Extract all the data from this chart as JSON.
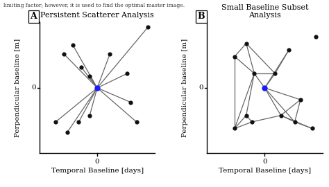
{
  "panel_A": {
    "title": "Persistent Scatterer Analysis",
    "label": "A",
    "master": [
      0,
      0
    ],
    "master_color": "#1a1aff",
    "points": [
      [
        -0.58,
        0.52
      ],
      [
        -0.42,
        0.65
      ],
      [
        -0.28,
        0.32
      ],
      [
        -0.13,
        0.18
      ],
      [
        0.22,
        0.52
      ],
      [
        0.52,
        0.22
      ],
      [
        0.88,
        0.93
      ],
      [
        0.58,
        -0.22
      ],
      [
        0.68,
        -0.52
      ],
      [
        -0.13,
        -0.42
      ],
      [
        -0.32,
        -0.52
      ],
      [
        -0.72,
        -0.52
      ],
      [
        -0.52,
        -0.68
      ]
    ],
    "xlabel": "Temporal Baseline [days]",
    "ylabel": "Perpendicular baseline [m]",
    "xlim": [
      -1.0,
      1.0
    ],
    "ylim": [
      -1.0,
      1.0
    ]
  },
  "panel_B": {
    "title": "Small Baseline Subset\nAnalysis",
    "label": "B",
    "master": [
      0,
      0
    ],
    "master_color": "#1a1aff",
    "points": [
      [
        -0.52,
        0.48
      ],
      [
        -0.32,
        0.68
      ],
      [
        -0.18,
        0.22
      ],
      [
        0.18,
        0.22
      ],
      [
        0.42,
        0.58
      ],
      [
        0.62,
        -0.18
      ],
      [
        0.52,
        -0.52
      ],
      [
        0.82,
        -0.62
      ],
      [
        -0.32,
        -0.42
      ],
      [
        -0.52,
        -0.62
      ],
      [
        -0.22,
        -0.52
      ],
      [
        0.28,
        -0.42
      ]
    ],
    "edges": [
      [
        0,
        1
      ],
      [
        0,
        2
      ],
      [
        1,
        2
      ],
      [
        1,
        3
      ],
      [
        2,
        3
      ],
      [
        2,
        "M"
      ],
      [
        3,
        "M"
      ],
      [
        0,
        9
      ],
      [
        2,
        9
      ],
      [
        2,
        8
      ],
      [
        8,
        9
      ],
      [
        8,
        10
      ],
      [
        9,
        10
      ],
      [
        3,
        4
      ],
      [
        4,
        "M"
      ],
      [
        "M",
        5
      ],
      [
        "M",
        6
      ],
      [
        "M",
        11
      ],
      [
        5,
        6
      ],
      [
        5,
        11
      ],
      [
        6,
        7
      ],
      [
        6,
        11
      ],
      [
        7,
        11
      ],
      [
        10,
        11
      ]
    ],
    "outlier": [
      0.88,
      0.78
    ],
    "xlabel": "Temporal Baseline [days]",
    "ylabel": "Perpendicular baseline [m]",
    "xlim": [
      -1.0,
      1.0
    ],
    "ylim": [
      -1.0,
      1.0
    ]
  },
  "line_color": "#666666",
  "line_width": 0.9,
  "point_color": "#111111",
  "point_size": 4.5,
  "master_size": 6,
  "bg_color": "#ffffff",
  "label_fontsize": 8,
  "title_fontsize": 8,
  "tick_fontsize": 7.5,
  "axis_label_fontsize": 7.5
}
